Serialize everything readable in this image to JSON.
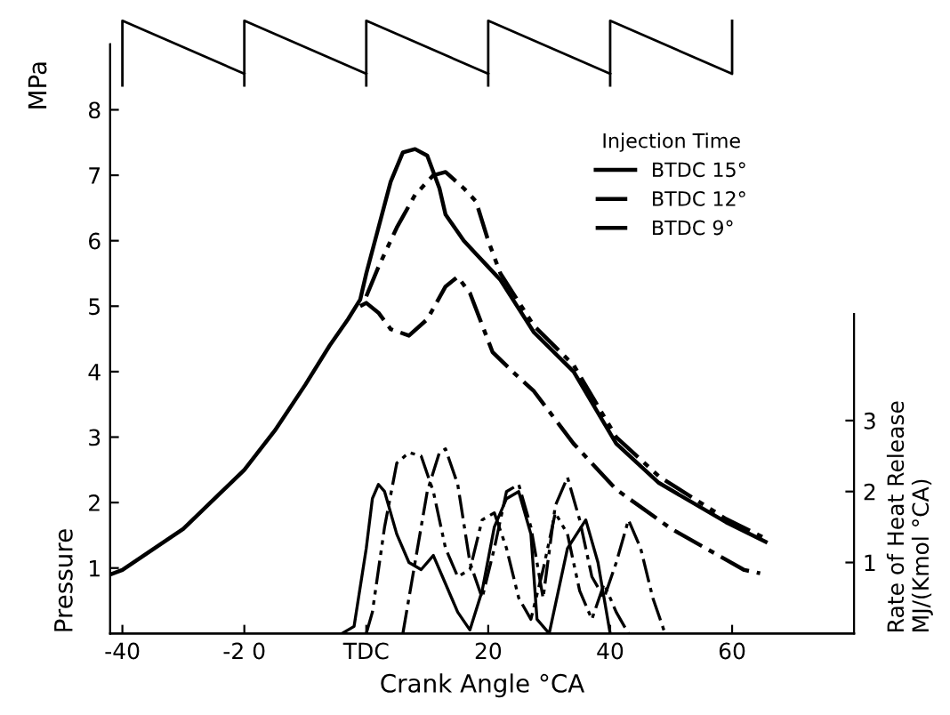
{
  "chart_data": {
    "type": "line",
    "xlabel": "Crank Angle °CA",
    "ylabel": "Pressure",
    "y2label": "Rate of Heat Release\nMJ/(Kmol °CA)",
    "legend_title": "Injection Time",
    "legend": "top right",
    "annotations": [
      "MPa"
    ],
    "xlim": [
      -42,
      80
    ],
    "xticks": [
      -40,
      {
        "value": -20,
        "label": "-2 0"
      },
      {
        "value": 0,
        "label": "TDC"
      },
      20,
      40,
      60
    ],
    "ylim": [
      0,
      9
    ],
    "yticks": [
      1,
      2,
      3,
      4,
      5,
      6,
      7,
      8
    ],
    "y2lim": [
      0,
      8.3
    ],
    "y2ticks": [
      1,
      2,
      3
    ],
    "grid": false,
    "series": [
      {
        "name": "BTDC 15°",
        "color": "#000000",
        "line_style": "solid",
        "x": [
          -42,
          -40,
          -30,
          -20,
          -15,
          -10,
          -6,
          -3,
          -1,
          0,
          2,
          4,
          6,
          8,
          10,
          12,
          13,
          16,
          18,
          20,
          22,
          27.5,
          34,
          41,
          48,
          59,
          65.5
        ],
        "values": [
          0.9,
          0.97,
          1.6,
          2.5,
          3.1,
          3.8,
          4.4,
          4.8,
          5.1,
          5.5,
          6.2,
          6.9,
          7.35,
          7.4,
          7.3,
          6.8,
          6.4,
          6.0,
          5.8,
          5.6,
          5.4,
          4.6,
          4.0,
          2.9,
          2.3,
          1.7,
          1.4
        ]
      },
      {
        "name": "BTDC 12°",
        "color": "#000000",
        "line_style": "dashdotdot",
        "x": [
          0,
          2,
          5,
          8,
          11,
          13,
          16,
          18,
          20,
          22,
          27.5,
          34,
          41,
          48,
          59,
          65.5
        ],
        "values": [
          5.15,
          5.6,
          6.2,
          6.7,
          7.0,
          7.05,
          6.8,
          6.6,
          6.0,
          5.5,
          4.7,
          4.1,
          3.0,
          2.4,
          1.75,
          1.45
        ]
      },
      {
        "name": "BTDC 9°",
        "color": "#000000",
        "line_style": "dashdot",
        "x": [
          -1,
          0,
          2,
          4,
          7,
          10,
          13,
          15,
          17,
          20.7,
          24,
          27.5,
          34,
          41,
          50,
          62,
          64.6
        ],
        "values": [
          5.0,
          5.05,
          4.9,
          4.65,
          4.55,
          4.8,
          5.3,
          5.45,
          5.2,
          4.3,
          4.0,
          3.7,
          2.9,
          2.2,
          1.6,
          0.97,
          0.92
        ]
      },
      {
        "axis": "y2",
        "color": "#000000",
        "line_style": "solid",
        "x": [
          -4,
          -2,
          0,
          1,
          2,
          3,
          5,
          7,
          9,
          11,
          13,
          15,
          17,
          19,
          21,
          23,
          25,
          27,
          28,
          30,
          33,
          36,
          38,
          40
        ],
        "values": [
          0,
          0.1,
          1.2,
          1.9,
          2.1,
          2.0,
          1.4,
          1.0,
          0.9,
          1.1,
          0.7,
          0.3,
          0.05,
          0.6,
          1.5,
          1.9,
          2.0,
          1.4,
          0.2,
          0,
          1.2,
          1.6,
          1.0,
          0
        ]
      },
      {
        "axis": "y2",
        "color": "#000000",
        "line_style": "dashdotdot",
        "x": [
          0,
          1,
          3,
          5,
          7,
          9,
          11,
          13,
          15,
          17,
          19,
          21,
          23,
          25,
          27,
          29,
          31,
          33,
          35,
          37,
          39,
          41,
          43
        ],
        "values": [
          0,
          0.3,
          1.5,
          2.4,
          2.55,
          2.5,
          2.0,
          1.2,
          0.8,
          0.9,
          1.6,
          1.7,
          1.2,
          0.5,
          0.2,
          0.9,
          1.7,
          1.4,
          0.6,
          0.2,
          0.7,
          0.3,
          0
        ]
      },
      {
        "axis": "y2",
        "color": "#000000",
        "line_style": "dashdot",
        "x": [
          6,
          8,
          10,
          12,
          13,
          15,
          17,
          19,
          21,
          23,
          25,
          27,
          29,
          31,
          33,
          35,
          37,
          39,
          41,
          43,
          45,
          47,
          49
        ],
        "values": [
          0,
          1.0,
          2.0,
          2.55,
          2.6,
          2.1,
          1.0,
          0.5,
          1.2,
          2.0,
          2.1,
          1.5,
          0.5,
          1.8,
          2.2,
          1.6,
          0.8,
          0.5,
          1.0,
          1.6,
          1.2,
          0.5,
          0
        ]
      }
    ]
  }
}
